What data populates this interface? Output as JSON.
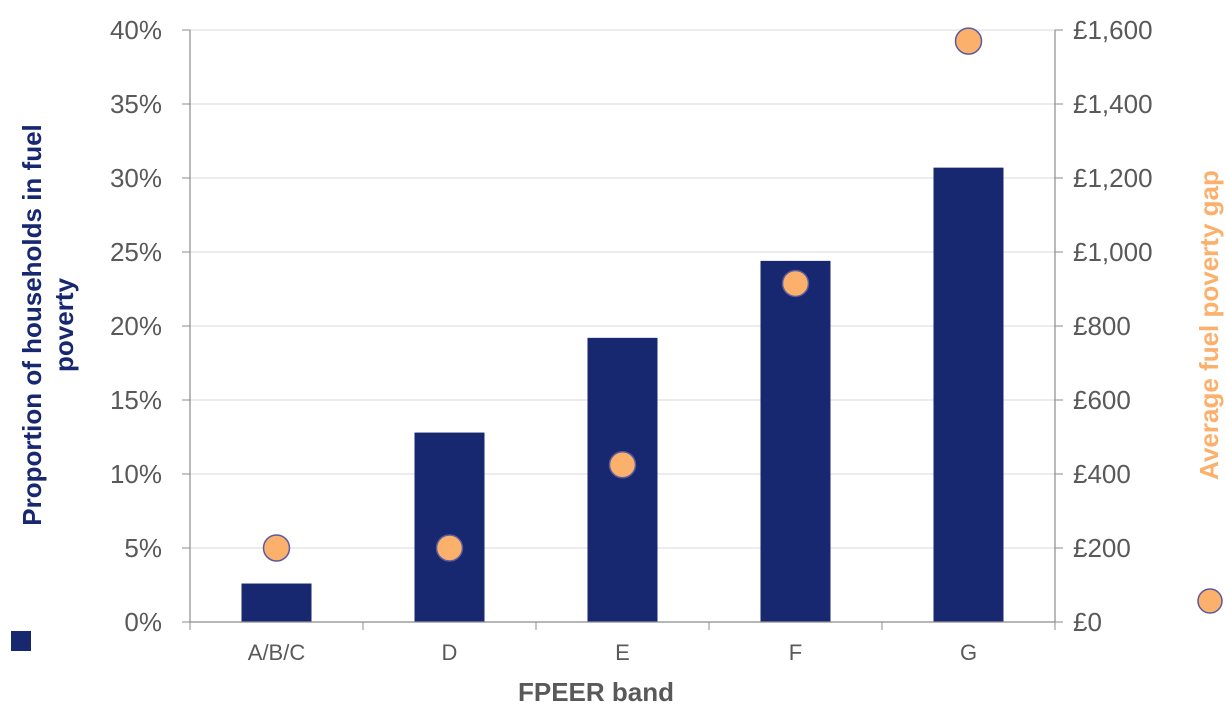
{
  "chart_data": {
    "type": "bar",
    "xlabel": "FPEER band",
    "ylabel": "Proportion of households in fuel poverty",
    "y2label": "Average fuel poverty gap",
    "categories": [
      "A/B/C",
      "D",
      "E",
      "F",
      "G"
    ],
    "series": [
      {
        "name": "",
        "axis": "left",
        "mark": "bar",
        "values": [
          2.6,
          12.8,
          19.2,
          24.4,
          30.7
        ],
        "color": "#172870"
      },
      {
        "name": "",
        "axis": "right",
        "mark": "point",
        "values": [
          200,
          200,
          425,
          915,
          1570
        ],
        "color": "#FBB06C",
        "stroke": "#5A5AA0"
      }
    ],
    "ylim": [
      0,
      40
    ],
    "y2lim": [
      0,
      1600
    ],
    "y_ticks": [
      "0%",
      "5%",
      "10%",
      "15%",
      "20%",
      "25%",
      "30%",
      "35%",
      "40%"
    ],
    "y2_ticks": [
      "£0",
      "£200",
      "£400",
      "£600",
      "£800",
      "£1,000",
      "£1,200",
      "£1,400",
      "£1,600"
    ],
    "grid": true,
    "colors": {
      "bar": "#172870",
      "point": "#FBB06C",
      "y2label": "#FBB06C",
      "ylabel": "#172870",
      "xlabel": "#595959",
      "axis": "#8C8C8C",
      "grid": "#D9D9D9"
    }
  }
}
